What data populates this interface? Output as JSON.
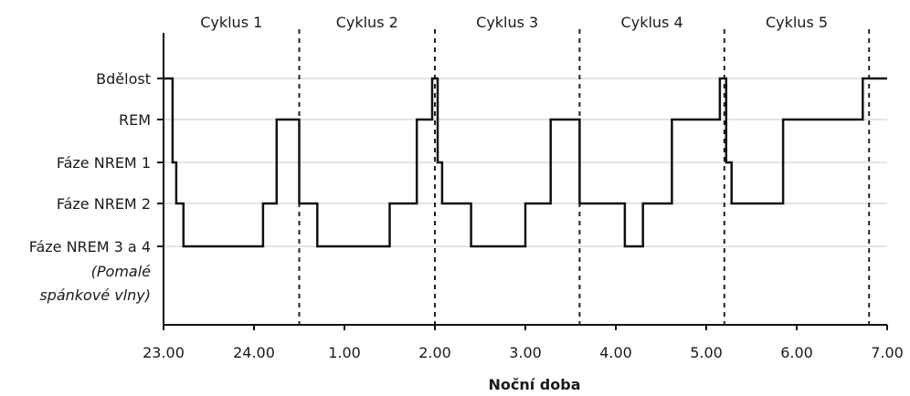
{
  "chart_data": {
    "type": "line",
    "step": true,
    "xlabel": "Noční doba",
    "x_ticks": [
      "23.00",
      "24.00",
      "1.00",
      "2.00",
      "3.00",
      "4.00",
      "5.00",
      "6.00",
      "7.00"
    ],
    "x_range_hours": [
      0,
      8
    ],
    "y_levels": [
      "Bdělost",
      "REM",
      "Fáze NREM 1",
      "Fáze NREM 2",
      "Fáze NREM 3 a 4"
    ],
    "y_note": [
      "(Pomalé",
      "spánkové vlny)"
    ],
    "cycles": [
      {
        "label": "Cyklus 1",
        "start": 0.0,
        "end": 1.5
      },
      {
        "label": "Cyklus 2",
        "start": 1.5,
        "end": 3.0
      },
      {
        "label": "Cyklus 3",
        "start": 3.0,
        "end": 4.6
      },
      {
        "label": "Cyklus 4",
        "start": 4.6,
        "end": 6.2
      },
      {
        "label": "Cyklus 5",
        "start": 6.2,
        "end": 7.8
      }
    ],
    "boundaries": [
      1.5,
      3.0,
      4.6,
      6.2,
      7.8
    ],
    "grid": true,
    "series": [
      {
        "points": [
          [
            0.0,
            0
          ],
          [
            0.1,
            0
          ],
          [
            0.1,
            2
          ],
          [
            0.14,
            2
          ],
          [
            0.14,
            3
          ],
          [
            0.22,
            3
          ],
          [
            0.22,
            4
          ],
          [
            1.1,
            4
          ],
          [
            1.1,
            3
          ],
          [
            1.25,
            3
          ],
          [
            1.25,
            1
          ],
          [
            1.5,
            1
          ],
          [
            1.5,
            3
          ],
          [
            1.7,
            3
          ],
          [
            1.7,
            4
          ],
          [
            2.5,
            4
          ],
          [
            2.5,
            3
          ],
          [
            2.8,
            3
          ],
          [
            2.8,
            1
          ],
          [
            2.97,
            1
          ],
          [
            2.97,
            0
          ],
          [
            3.03,
            0
          ],
          [
            3.03,
            2
          ],
          [
            3.08,
            2
          ],
          [
            3.08,
            3
          ],
          [
            3.4,
            3
          ],
          [
            3.4,
            4
          ],
          [
            4.0,
            4
          ],
          [
            4.0,
            3
          ],
          [
            4.28,
            3
          ],
          [
            4.28,
            1
          ],
          [
            4.6,
            1
          ],
          [
            4.6,
            3
          ],
          [
            5.1,
            3
          ],
          [
            5.1,
            4
          ],
          [
            5.3,
            4
          ],
          [
            5.3,
            3
          ],
          [
            5.62,
            3
          ],
          [
            5.62,
            1
          ],
          [
            6.15,
            1
          ],
          [
            6.15,
            0
          ],
          [
            6.22,
            0
          ],
          [
            6.22,
            2
          ],
          [
            6.28,
            2
          ],
          [
            6.28,
            3
          ],
          [
            6.85,
            3
          ],
          [
            6.85,
            1
          ],
          [
            7.73,
            1
          ],
          [
            7.73,
            0
          ],
          [
            8.0,
            0
          ]
        ]
      }
    ]
  }
}
